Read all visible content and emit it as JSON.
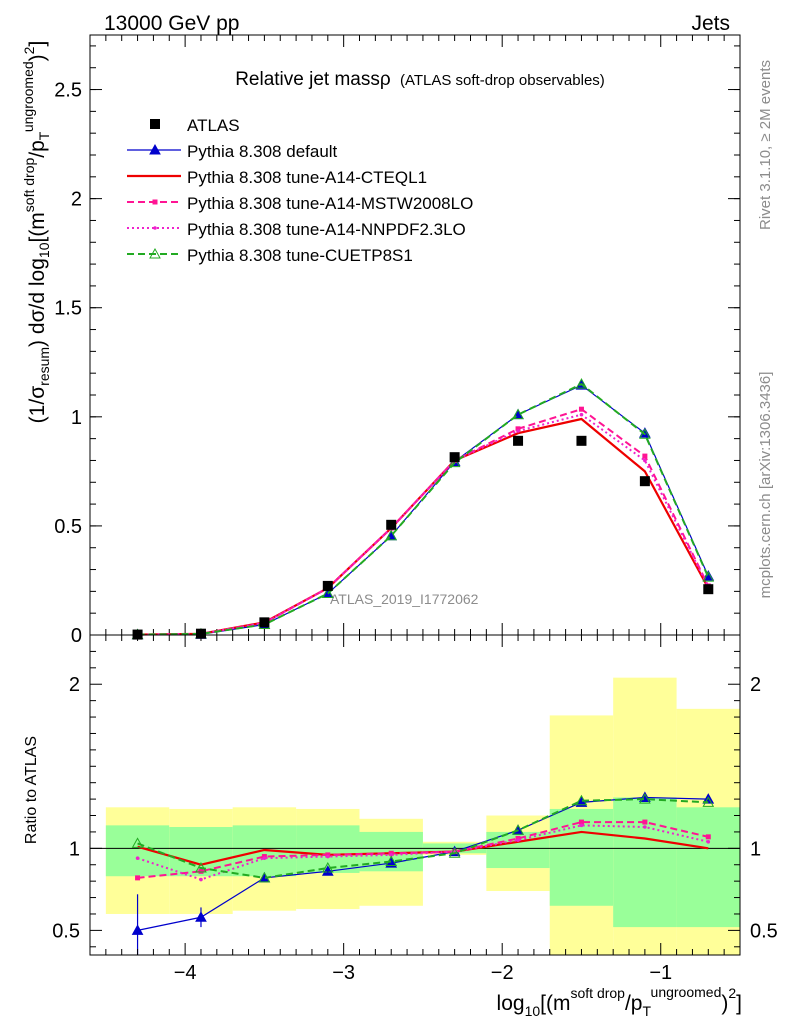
{
  "header": {
    "left": "13000 GeV pp",
    "right": "Jets",
    "side_top": "Rivet 3.1.10, ≥ 2M events",
    "side_bottom": "mcplots.cern.ch [arXiv:1306.3436]"
  },
  "chart_data": [
    {
      "type": "line",
      "title": "Relative jet massρ",
      "subtitle": "(ATLAS soft-drop observables)",
      "watermark": "ATLAS_2019_I1772062",
      "ylabel": "(1/σresum) dσ/d log10[(m soft drop/pT ungroomed)2]",
      "xlabel": "log10[(m soft drop/pT ungroomed)2]",
      "xlim": [
        -4.6,
        -0.5
      ],
      "ylim": [
        0,
        2.75
      ],
      "x_ticks": [
        "−4",
        "−3",
        "−2",
        "−1"
      ],
      "y_ticks": [
        "0",
        "0.5",
        "1",
        "1.5",
        "2",
        "2.5"
      ],
      "x": [
        -4.3,
        -3.9,
        -3.5,
        -3.1,
        -2.7,
        -2.3,
        -1.9,
        -1.5,
        -1.1,
        -0.7
      ],
      "data": {
        "name": "ATLAS",
        "values": [
          0.002,
          0.006,
          0.058,
          0.225,
          0.505,
          0.815,
          0.89,
          0.89,
          0.705,
          0.21
        ]
      },
      "series": [
        {
          "name": "Pythia 8.308 default",
          "color": "#0000cc",
          "dash": "solid",
          "marker": "triangle",
          "values": [
            0.001,
            0.0035,
            0.048,
            0.19,
            0.455,
            0.795,
            1.01,
            1.145,
            0.925,
            0.27
          ]
        },
        {
          "name": "Pythia 8.308 tune-A14-CTEQL1",
          "color": "#ee0000",
          "dash": "solid",
          "marker": "none",
          "values": [
            0.002,
            0.0055,
            0.058,
            0.215,
            0.49,
            0.8,
            0.925,
            0.99,
            0.75,
            0.215
          ]
        },
        {
          "name": "Pythia 8.308 tune-A14-MSTW2008LO",
          "color": "#ff1493",
          "dash": "dashed",
          "marker": "square",
          "values": [
            0.0017,
            0.005,
            0.055,
            0.215,
            0.49,
            0.8,
            0.945,
            1.035,
            0.82,
            0.225
          ]
        },
        {
          "name": "Pythia 8.308 tune-A14-NNPDF2.3LO",
          "color": "#ee22cc",
          "dash": "dotted",
          "marker": "dot",
          "values": [
            0.0018,
            0.0052,
            0.056,
            0.215,
            0.49,
            0.8,
            0.935,
            1.01,
            0.8,
            0.22
          ]
        },
        {
          "name": "Pythia 8.308 tune-CUETP8S1",
          "color": "#22aa22",
          "dash": "dashed",
          "marker": "triangle-open",
          "values": [
            0.002,
            0.0053,
            0.048,
            0.19,
            0.455,
            0.79,
            1.01,
            1.15,
            0.92,
            0.265
          ]
        }
      ]
    },
    {
      "type": "line",
      "ylabel": "Ratio to ATLAS",
      "ylim": [
        0.35,
        2.3
      ],
      "y_ticks": [
        "0.5",
        "1",
        "2"
      ],
      "x": [
        -4.3,
        -3.9,
        -3.5,
        -3.1,
        -2.7,
        -2.3,
        -1.9,
        -1.5,
        -1.1,
        -0.7
      ],
      "bins": [
        [
          -4.5,
          -4.1
        ],
        [
          -4.1,
          -3.7
        ],
        [
          -3.7,
          -3.3
        ],
        [
          -3.3,
          -2.9
        ],
        [
          -2.9,
          -2.5
        ],
        [
          -2.5,
          -2.1
        ],
        [
          -2.1,
          -1.7
        ],
        [
          -1.7,
          -1.3
        ],
        [
          -1.3,
          -0.9
        ],
        [
          -0.9,
          -0.5
        ]
      ],
      "band_green": [
        [
          0.83,
          1.14
        ],
        [
          0.83,
          1.13
        ],
        [
          0.83,
          1.14
        ],
        [
          0.85,
          1.14
        ],
        [
          0.86,
          1.1
        ],
        [
          0.97,
          1.03
        ],
        [
          0.88,
          1.1
        ],
        [
          0.65,
          1.24
        ],
        [
          0.52,
          1.31
        ],
        [
          0.52,
          1.25
        ]
      ],
      "band_yellow": [
        [
          0.6,
          1.25
        ],
        [
          0.6,
          1.24
        ],
        [
          0.62,
          1.25
        ],
        [
          0.63,
          1.24
        ],
        [
          0.65,
          1.18
        ],
        [
          0.96,
          1.04
        ],
        [
          0.74,
          1.2
        ],
        [
          0.33,
          1.81
        ],
        [
          0.33,
          2.04
        ],
        [
          0.33,
          1.85
        ]
      ],
      "series": [
        {
          "name": "Pythia 8.308 default",
          "values": [
            0.5,
            0.58,
            0.82,
            0.86,
            0.91,
            0.98,
            1.11,
            1.28,
            1.31,
            1.3
          ]
        },
        {
          "name": "Pythia 8.308 tune-A14-CTEQL1",
          "values": [
            1.01,
            0.9,
            0.99,
            0.96,
            0.97,
            0.98,
            1.04,
            1.1,
            1.06,
            1.0
          ]
        },
        {
          "name": "Pythia 8.308 tune-A14-MSTW2008LO",
          "values": [
            0.82,
            0.86,
            0.95,
            0.96,
            0.97,
            0.98,
            1.06,
            1.16,
            1.16,
            1.07
          ]
        },
        {
          "name": "Pythia 8.308 tune-A14-NNPDF2.3LO",
          "values": [
            0.94,
            0.81,
            0.94,
            0.95,
            0.96,
            0.98,
            1.05,
            1.14,
            1.13,
            1.04
          ]
        },
        {
          "name": "Pythia 8.308 tune-CUETP8S1",
          "values": [
            1.03,
            0.88,
            0.82,
            0.88,
            0.92,
            0.97,
            1.11,
            1.29,
            1.3,
            1.28
          ]
        }
      ],
      "error_bars": {
        "series_index": 0,
        "low": [
          0.0,
          0.52,
          0.8,
          0.85,
          0.9,
          0.97,
          1.1,
          1.27,
          1.3,
          1.29
        ],
        "high": [
          0.72,
          0.64,
          0.84,
          0.88,
          0.92,
          0.99,
          1.12,
          1.29,
          1.32,
          1.31
        ]
      }
    }
  ]
}
